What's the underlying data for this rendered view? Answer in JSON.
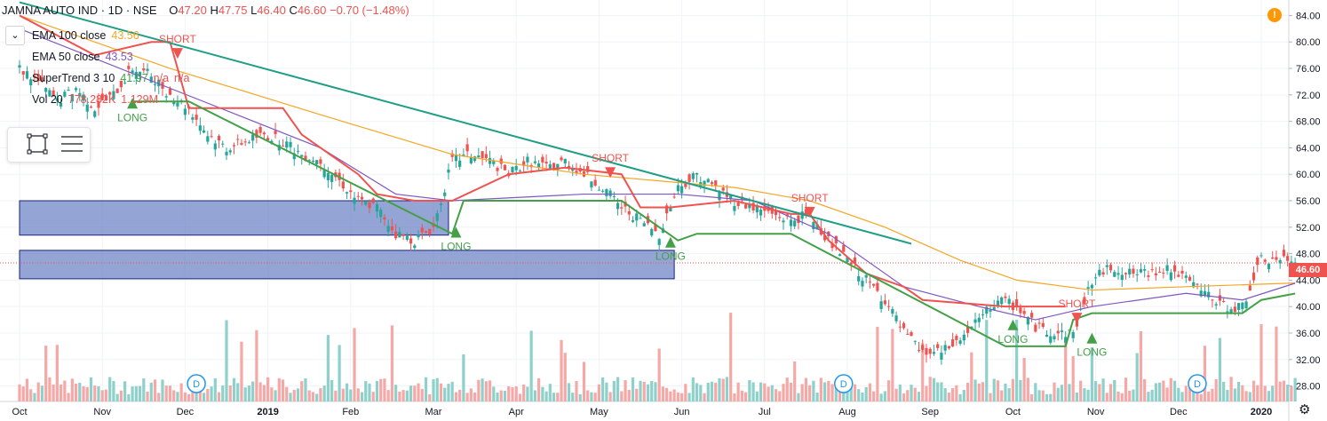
{
  "header": {
    "title": "JAMNA AUTO IND · 1D · NSE",
    "open_label": "O",
    "open": "47.20",
    "high_label": "H",
    "high": "47.75",
    "low_label": "L",
    "low": "46.40",
    "close_label": "C",
    "close": "46.60",
    "change": "−0.70 (−1.48%)"
  },
  "legend": {
    "ema100": {
      "name": "EMA 100 close",
      "value": "43.56",
      "color": "#f5a623"
    },
    "ema50": {
      "name": "EMA 50 close",
      "value": "43.53",
      "color": "#7e57c2"
    },
    "supertrend": {
      "name": "SuperTrend 3 10",
      "value": "41.97",
      "na1": "n/a",
      "na2": "n/a",
      "color": "#2e7d32"
    },
    "vol": {
      "name": "Vol 20",
      "value": "778.282K",
      "value2": "1.129M",
      "color": "#ef5350"
    }
  },
  "price_tag": "46.60",
  "colors": {
    "up": "#26a69a",
    "down": "#ef5350",
    "trendline": "#1e9e85",
    "zone": "#6f86c7",
    "supertrend_up": "#43a047",
    "supertrend_down": "#ef5350"
  },
  "icons": {
    "alert": "exclamation-icon",
    "settings": "gear-icon",
    "collapse": "chevron-down-icon",
    "rectangle_tool": "rectangle-icon",
    "lines_tool": "horizontal-lines-icon",
    "dividend": "D"
  },
  "chart_data": {
    "type": "candlestick",
    "symbol": "JAMNA AUTO IND",
    "interval": "1D",
    "exchange": "NSE",
    "ylim": [
      27,
      85
    ],
    "y_ticks": [
      28.0,
      32.0,
      36.0,
      40.0,
      44.0,
      48.0,
      52.0,
      56.0,
      60.0,
      64.0,
      68.0,
      72.0,
      76.0,
      80.0,
      84.0
    ],
    "x_ticks": [
      "Oct",
      "Nov",
      "Dec",
      "2019",
      "Feb",
      "Mar",
      "Apr",
      "May",
      "Jun",
      "Jul",
      "Aug",
      "Sep",
      "Oct",
      "Nov",
      "Dec",
      "2020"
    ],
    "x_tick_days": [
      0,
      22,
      44,
      66,
      88,
      110,
      132,
      154,
      176,
      198,
      220,
      242,
      264,
      286,
      308,
      330
    ],
    "total_days": 340,
    "close_series": [
      [
        0,
        76
      ],
      [
        5,
        74
      ],
      [
        10,
        71
      ],
      [
        15,
        73
      ],
      [
        20,
        70
      ],
      [
        25,
        72
      ],
      [
        30,
        76
      ],
      [
        35,
        75
      ],
      [
        40,
        72
      ],
      [
        45,
        70
      ],
      [
        50,
        66
      ],
      [
        55,
        64
      ],
      [
        60,
        65
      ],
      [
        65,
        66
      ],
      [
        70,
        65
      ],
      [
        75,
        63
      ],
      [
        80,
        62
      ],
      [
        85,
        59
      ],
      [
        90,
        56
      ],
      [
        95,
        55
      ],
      [
        100,
        51
      ],
      [
        105,
        50
      ],
      [
        110,
        52
      ],
      [
        115,
        62
      ],
      [
        120,
        63
      ],
      [
        125,
        62
      ],
      [
        130,
        60
      ],
      [
        135,
        62
      ],
      [
        140,
        61
      ],
      [
        145,
        62
      ],
      [
        150,
        60
      ],
      [
        155,
        58
      ],
      [
        160,
        55
      ],
      [
        165,
        53
      ],
      [
        170,
        51
      ],
      [
        175,
        58
      ],
      [
        180,
        60
      ],
      [
        185,
        58
      ],
      [
        190,
        56
      ],
      [
        195,
        55
      ],
      [
        200,
        54
      ],
      [
        205,
        53
      ],
      [
        210,
        54
      ],
      [
        215,
        50
      ],
      [
        220,
        47
      ],
      [
        225,
        44
      ],
      [
        230,
        41
      ],
      [
        235,
        36
      ],
      [
        240,
        33
      ],
      [
        245,
        33
      ],
      [
        250,
        35
      ],
      [
        255,
        38
      ],
      [
        260,
        41
      ],
      [
        265,
        40
      ],
      [
        270,
        37
      ],
      [
        275,
        36
      ],
      [
        280,
        36
      ],
      [
        285,
        44
      ],
      [
        290,
        46
      ],
      [
        295,
        45
      ],
      [
        300,
        45
      ],
      [
        305,
        46
      ],
      [
        310,
        44
      ],
      [
        315,
        42
      ],
      [
        320,
        40
      ],
      [
        325,
        40
      ],
      [
        330,
        47
      ],
      [
        335,
        47
      ],
      [
        339,
        46.6
      ]
    ],
    "ema100_series": [
      [
        0,
        84
      ],
      [
        40,
        76
      ],
      [
        80,
        69
      ],
      [
        115,
        63
      ],
      [
        150,
        60
      ],
      [
        190,
        58
      ],
      [
        210,
        56
      ],
      [
        230,
        52
      ],
      [
        250,
        47
      ],
      [
        265,
        44
      ],
      [
        285,
        42.5
      ],
      [
        310,
        43
      ],
      [
        339,
        43.56
      ]
    ],
    "ema50_series": [
      [
        0,
        82
      ],
      [
        40,
        73
      ],
      [
        80,
        64
      ],
      [
        100,
        57
      ],
      [
        115,
        56
      ],
      [
        150,
        57
      ],
      [
        175,
        57
      ],
      [
        195,
        56
      ],
      [
        215,
        51
      ],
      [
        235,
        43
      ],
      [
        255,
        40
      ],
      [
        270,
        38
      ],
      [
        285,
        40
      ],
      [
        310,
        42
      ],
      [
        325,
        41
      ],
      [
        339,
        43.53
      ]
    ],
    "supertrend_down": [
      [
        0,
        84
      ],
      [
        20,
        78
      ],
      [
        35,
        80
      ],
      [
        40,
        80
      ],
      [
        45,
        70
      ],
      [
        70,
        70
      ],
      [
        75,
        66
      ],
      [
        80,
        64
      ],
      [
        85,
        62
      ],
      [
        90,
        60
      ],
      [
        95,
        57
      ],
      [
        105,
        56
      ],
      [
        113,
        56
      ],
      [
        115,
        56
      ],
      [
        130,
        60
      ],
      [
        145,
        61
      ],
      [
        160,
        60
      ],
      [
        165,
        55
      ],
      [
        173,
        55
      ],
      [
        190,
        56
      ],
      [
        205,
        54
      ],
      [
        210,
        54
      ],
      [
        215,
        50
      ],
      [
        225,
        45
      ],
      [
        235,
        43
      ],
      [
        240,
        41
      ],
      [
        262,
        40
      ],
      [
        268,
        40
      ],
      [
        278,
        40
      ]
    ],
    "supertrend_up": [
      [
        30,
        71
      ],
      [
        45,
        71
      ],
      [
        115,
        51
      ],
      [
        118,
        56
      ],
      [
        160,
        56
      ],
      [
        175,
        50
      ],
      [
        180,
        51
      ],
      [
        205,
        51
      ],
      [
        262,
        34
      ],
      [
        278,
        34
      ],
      [
        280,
        38
      ],
      [
        285,
        39
      ],
      [
        325,
        39
      ],
      [
        330,
        41
      ],
      [
        339,
        41.97
      ]
    ],
    "trendline": [
      [
        0,
        86
      ],
      [
        237,
        49.5
      ]
    ],
    "zones": [
      {
        "x0": 0,
        "x1": 114,
        "y0": 50.8,
        "y1": 56
      },
      {
        "x0": 0,
        "x1": 174,
        "y0": 44.2,
        "y1": 48.5
      }
    ],
    "signals": [
      {
        "type": "SHORT",
        "day": 42,
        "price": 78
      },
      {
        "type": "LONG",
        "day": 30,
        "price": 71
      },
      {
        "type": "LONG",
        "day": 116,
        "price": 51.5
      },
      {
        "type": "SHORT",
        "day": 157,
        "price": 60
      },
      {
        "type": "LONG",
        "day": 173,
        "price": 50
      },
      {
        "type": "SHORT",
        "day": 210,
        "price": 54
      },
      {
        "type": "LONG",
        "day": 264,
        "price": 37.5
      },
      {
        "type": "SHORT",
        "day": 281,
        "price": 38
      },
      {
        "type": "LONG",
        "day": 285,
        "price": 35.5
      }
    ],
    "dividends_days": [
      47,
      219,
      313
    ],
    "last_price": 46.6
  }
}
